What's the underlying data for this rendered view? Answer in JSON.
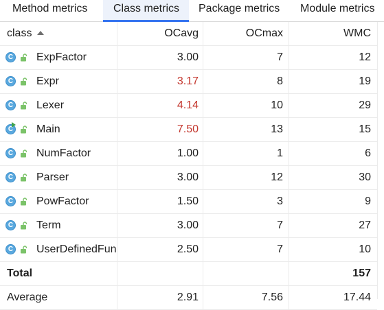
{
  "tabs": [
    {
      "label": "Method metrics",
      "active": false
    },
    {
      "label": "Class metrics",
      "active": true
    },
    {
      "label": "Package metrics",
      "active": false
    },
    {
      "label": "Module metrics",
      "active": false
    }
  ],
  "columns": {
    "name": "class",
    "ocavg": "OCavg",
    "ocmax": "OCmax",
    "wmc": "WMC"
  },
  "sort": {
    "column": "class",
    "direction": "ascending"
  },
  "icons": {
    "class_icon": "class-icon",
    "run_badge": "run-badge-icon",
    "access_icon": "open-lock-icon",
    "sort_icon": "sort-ascending-icon"
  },
  "colors": {
    "accent": "#3574f0",
    "warning": "#c4382f",
    "class_icon": "#59a8de",
    "lock_icon": "#7cc36a"
  },
  "rows": [
    {
      "name": "ExpFactor",
      "ocavg": "3.00",
      "ocmax": "7",
      "wmc": "12",
      "ocavg_warning": false,
      "runnable": false
    },
    {
      "name": "Expr",
      "ocavg": "3.17",
      "ocmax": "8",
      "wmc": "19",
      "ocavg_warning": true,
      "runnable": false
    },
    {
      "name": "Lexer",
      "ocavg": "4.14",
      "ocmax": "10",
      "wmc": "29",
      "ocavg_warning": true,
      "runnable": false
    },
    {
      "name": "Main",
      "ocavg": "7.50",
      "ocmax": "13",
      "wmc": "15",
      "ocavg_warning": true,
      "runnable": true
    },
    {
      "name": "NumFactor",
      "ocavg": "1.00",
      "ocmax": "1",
      "wmc": "6",
      "ocavg_warning": false,
      "runnable": false
    },
    {
      "name": "Parser",
      "ocavg": "3.00",
      "ocmax": "12",
      "wmc": "30",
      "ocavg_warning": false,
      "runnable": false
    },
    {
      "name": "PowFactor",
      "ocavg": "1.50",
      "ocmax": "3",
      "wmc": "9",
      "ocavg_warning": false,
      "runnable": false
    },
    {
      "name": "Term",
      "ocavg": "3.00",
      "ocmax": "7",
      "wmc": "27",
      "ocavg_warning": false,
      "runnable": false
    },
    {
      "name": "UserDefinedFun",
      "ocavg": "2.50",
      "ocmax": "7",
      "wmc": "10",
      "ocavg_warning": false,
      "runnable": false
    }
  ],
  "total": {
    "label": "Total",
    "ocavg": "",
    "ocmax": "",
    "wmc": "157"
  },
  "average": {
    "label": "Average",
    "ocavg": "2.91",
    "ocmax": "7.56",
    "wmc": "17.44"
  }
}
